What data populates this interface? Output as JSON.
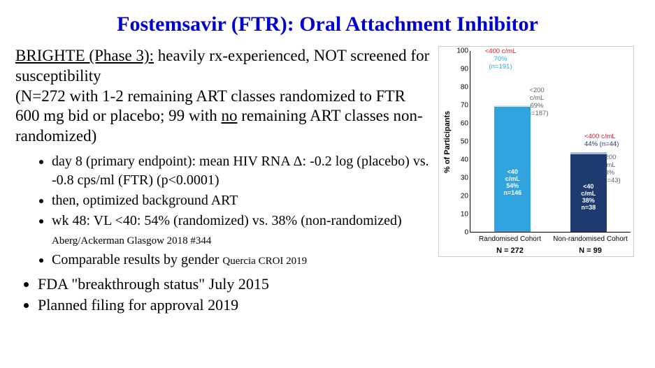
{
  "title": "Fostemsavir (FTR): Oral Attachment Inhibitor",
  "paragraph": {
    "lead_underlined": "BRIGHTE (Phase 3):",
    "lead_rest": " heavily rx-experienced, NOT screened for susceptibility",
    "line2a": "(N=272 with 1-2 remaining ART classes randomized to FTR 600 mg bid or placebo; 99 with ",
    "no_underlined": "no",
    "line2b": " remaining ART classes non-randomized)"
  },
  "bullets_sub": {
    "b1": "day 8 (primary endpoint): mean HIV RNA Δ:  -0.2 log (placebo) vs. -0.8 cps/ml (FTR) (p<0.0001)",
    "b2": "then, optimized background ART",
    "b3a": "wk 48: VL <40:  54% (randomized) vs. 38% (non-randomized)",
    "b3_cite": "Aberg/Ackerman Glasgow 2018 #344",
    "b4a": "Comparable results by gender",
    "b4_cite": "Quercia CROI 2019"
  },
  "bullets_main": {
    "m1": "FDA \"breakthrough status\" July 2015",
    "m2": "Planned filing for approval 2019"
  },
  "chart": {
    "ylabel": "% of Participants",
    "ylim": [
      0,
      100
    ],
    "yticks": [
      0,
      10,
      20,
      30,
      40,
      50,
      60,
      70,
      80,
      90,
      100
    ],
    "categories": [
      "Randomised Cohort",
      "Non-randomised Cohort"
    ],
    "n_caption": [
      "N = 272",
      "N = 99"
    ],
    "colors": {
      "rc_40": "#2fa4de",
      "rc_200": "#2fa4de",
      "rc_400": "#c9e6f5",
      "nrc_40": "#1f3a6e",
      "nrc_200": "#1f3a6e",
      "nrc_400": "#a9b8d4",
      "ann_red": "#d11a2a",
      "ann_blue": "#2fa4de",
      "ann_gray": "#5a6570",
      "ann_navy": "#1f3a6e"
    },
    "bars": {
      "rc": {
        "seg40": 54,
        "seg200": 15,
        "seg400": 1,
        "total": 70
      },
      "nrc": {
        "seg40": 38,
        "seg200": 5,
        "seg400": 1,
        "total": 44
      }
    },
    "seg_labels": {
      "rc40_l1": "<40",
      "rc40_l2": "c/mL",
      "rc40_l3": "54%",
      "rc40_l4": "n=146",
      "nrc40_l1": "<40",
      "nrc40_l2": "c/mL",
      "nrc40_l3": "38%",
      "nrc40_l4": "n=38"
    },
    "annotations": {
      "top_red_l1": "<400 c/mL",
      "top_red_l2": "70%",
      "top_red_l3": "(n=191)",
      "rc200_l1": "<200",
      "rc200_l2": "c/mL",
      "rc200_l3": "69%",
      "rc200_l4": "(n=187)",
      "nrc400_l1": "<400 c/mL",
      "nrc400_l2": "44% (n=44)",
      "nrc200_l1": "<200",
      "nrc200_l2": "c/mL",
      "nrc200_l3": "43%",
      "nrc200_l4": "(n=43)"
    }
  }
}
